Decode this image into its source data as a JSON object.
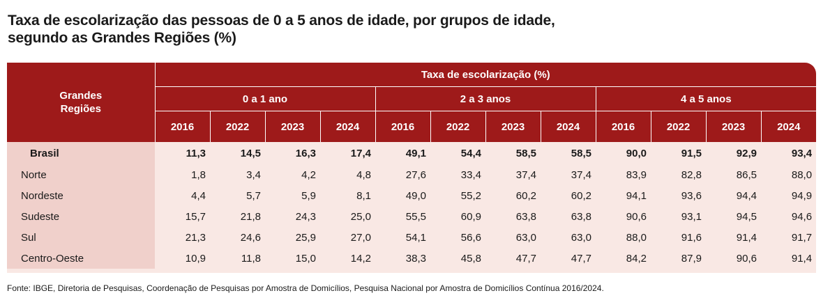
{
  "title_line1": "Taxa de escolarização das pessoas de 0 a 5 anos de idade, por grupos de idade,",
  "title_line2": "segundo as Grandes Regiões (%)",
  "header": {
    "region_line1": "Grandes",
    "region_line2": "Regiões",
    "main": "Taxa de escolarização (%)",
    "groups": [
      "0 a 1 ano",
      "2 a 3 anos",
      "4 a 5 anos"
    ],
    "years": [
      "2016",
      "2022",
      "2023",
      "2024",
      "2016",
      "2022",
      "2023",
      "2024",
      "2016",
      "2022",
      "2023",
      "2024"
    ]
  },
  "source": "Fonte: IBGE, Diretoria de Pesquisas, Coordenação de Pesquisas por Amostra de Domicílios, Pesquisa Nacional por Amostra de Domicílios Contínua 2016/2024.",
  "colors": {
    "header_bg": "#9e1a1a",
    "region_bg": "#f0d0cb",
    "body_bg": "#f9e8e4"
  },
  "chart_data": {
    "type": "table",
    "title": "Taxa de escolarização das pessoas de 0 a 5 anos de idade, por grupos de idade, segundo as Grandes Regiões (%)",
    "columns": [
      "0 a 1 ano 2016",
      "0 a 1 ano 2022",
      "0 a 1 ano 2023",
      "0 a 1 ano 2024",
      "2 a 3 anos 2016",
      "2 a 3 anos 2022",
      "2 a 3 anos 2023",
      "2 a 3 anos 2024",
      "4 a 5 anos 2016",
      "4 a 5 anos 2022",
      "4 a 5 anos 2023",
      "4 a 5 anos 2024"
    ],
    "rows": [
      {
        "region": "Brasil",
        "values": [
          "11,3",
          "14,5",
          "16,3",
          "17,4",
          "49,1",
          "54,4",
          "58,5",
          "58,5",
          "90,0",
          "91,5",
          "92,9",
          "93,4"
        ]
      },
      {
        "region": "Norte",
        "values": [
          "1,8",
          "3,4",
          "4,2",
          "4,8",
          "27,6",
          "33,4",
          "37,4",
          "37,4",
          "83,9",
          "82,8",
          "86,5",
          "88,0"
        ]
      },
      {
        "region": "Nordeste",
        "values": [
          "4,4",
          "5,7",
          "5,9",
          "8,1",
          "49,0",
          "55,2",
          "60,2",
          "60,2",
          "94,1",
          "93,6",
          "94,4",
          "94,9"
        ]
      },
      {
        "region": "Sudeste",
        "values": [
          "15,7",
          "21,8",
          "24,3",
          "25,0",
          "55,5",
          "60,9",
          "63,8",
          "63,8",
          "90,6",
          "93,1",
          "94,5",
          "94,6"
        ]
      },
      {
        "region": "Sul",
        "values": [
          "21,3",
          "24,6",
          "25,9",
          "27,0",
          "54,1",
          "56,6",
          "63,0",
          "63,0",
          "88,0",
          "91,6",
          "91,4",
          "91,7"
        ]
      },
      {
        "region": "Centro-Oeste",
        "values": [
          "10,9",
          "11,8",
          "15,0",
          "14,2",
          "38,3",
          "45,8",
          "47,7",
          "47,7",
          "84,2",
          "87,9",
          "90,6",
          "91,4"
        ]
      }
    ]
  }
}
